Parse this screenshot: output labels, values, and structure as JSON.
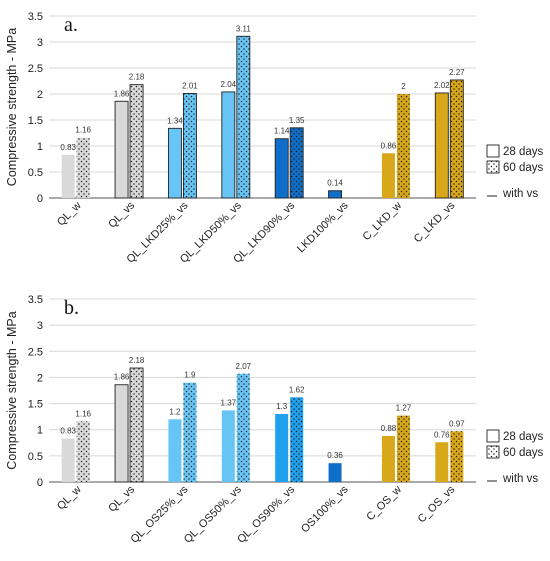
{
  "legend": {
    "days28": "28 days",
    "days60": "60 days",
    "with_vs": "with vs"
  },
  "colors": {
    "grey": "#d9d9d9",
    "light_blue": "#67c5f5",
    "mid_blue": "#20a0ee",
    "dark_blue": "#0f6ec9",
    "gold": "#d9a71a",
    "outline": "#222222"
  },
  "chart_data": [
    {
      "type": "bar",
      "title": "a.",
      "ylabel": "Compressive strength - MPa",
      "ylim": [
        0,
        3.5
      ],
      "yticks": [
        "0",
        "0.5",
        "1",
        "1.5",
        "2",
        "2.5",
        "3",
        "3.5"
      ],
      "grid": true,
      "categories": [
        "QL_w",
        "QL_vs",
        "QL_LKD25%_vs",
        "QL_LKD50%_vs",
        "QL_LKD90%_vs",
        "LKD100%_vs",
        "C_LKD_w",
        "C_LKD_vs"
      ],
      "category_colors": [
        "grey",
        "grey",
        "light_blue",
        "light_blue",
        "dark_blue",
        "dark_blue",
        "gold",
        "gold"
      ],
      "vs_outline": [
        false,
        true,
        true,
        true,
        true,
        true,
        false,
        true
      ],
      "series": [
        {
          "name": "28 days",
          "values": [
            0.83,
            1.86,
            1.34,
            2.04,
            1.14,
            0.14,
            0.86,
            2.02
          ],
          "labels": [
            "0.83",
            "1.86",
            "1.34",
            "2.04",
            "1.14",
            "0.14",
            "0.86",
            "2.02"
          ]
        },
        {
          "name": "60 days",
          "values": [
            1.16,
            2.18,
            2.01,
            3.11,
            1.35,
            null,
            2,
            2.27
          ],
          "labels": [
            "1.16",
            "2.18",
            "2.01",
            "3.11",
            "1.35",
            "",
            "2",
            "2.27"
          ]
        }
      ]
    },
    {
      "type": "bar",
      "title": "b.",
      "ylabel": "Compressive strength - MPa",
      "ylim": [
        0,
        3.5
      ],
      "yticks": [
        "0",
        "0.5",
        "1",
        "1.5",
        "2",
        "2.5",
        "3",
        "3.5"
      ],
      "grid": true,
      "categories": [
        "QL_w",
        "QL_vs",
        "QL_OS25%_vs",
        "QL_OS50%_vs",
        "QL_OS90%_vs",
        "OS100%_vs",
        "C_OS_w",
        "C_OS_vs"
      ],
      "category_colors": [
        "grey",
        "grey",
        "light_blue",
        "light_blue",
        "mid_blue",
        "dark_blue",
        "gold",
        "gold"
      ],
      "vs_outline": [
        false,
        true,
        false,
        false,
        false,
        false,
        false,
        false
      ],
      "series": [
        {
          "name": "28 days",
          "values": [
            0.83,
            1.86,
            1.2,
            1.37,
            1.3,
            0.36,
            0.88,
            0.76
          ],
          "labels": [
            "0.83",
            "1.86",
            "1.2",
            "1.37",
            "1.3",
            "0.36",
            "0.88",
            "0.76"
          ]
        },
        {
          "name": "60 days",
          "values": [
            1.16,
            2.18,
            1.9,
            2.07,
            1.62,
            null,
            1.27,
            0.97
          ],
          "labels": [
            "1.16",
            "2.18",
            "1.9",
            "2.07",
            "1.62",
            "",
            "1.27",
            "0.97"
          ]
        }
      ]
    }
  ]
}
